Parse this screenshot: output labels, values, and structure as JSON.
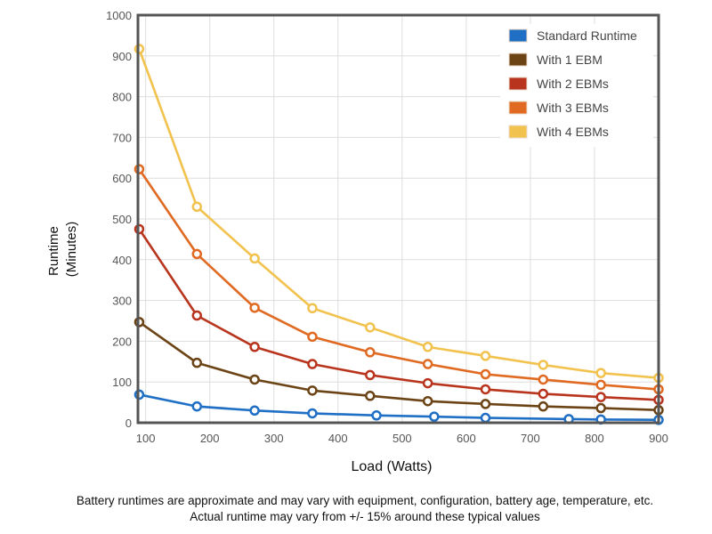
{
  "chart_data": {
    "type": "line",
    "xlabel": "Load (Watts)",
    "ylabel_lines": [
      "Runtime",
      "(Minutes)"
    ],
    "xlim": [
      88,
      900
    ],
    "ylim": [
      0,
      1000
    ],
    "xticks": [
      100,
      200,
      300,
      400,
      500,
      600,
      700,
      800,
      900
    ],
    "yticks": [
      0,
      100,
      200,
      300,
      400,
      500,
      600,
      700,
      800,
      900,
      1000
    ],
    "grid": true,
    "legend_position": "top-right",
    "series": [
      {
        "name": "Standard Runtime",
        "color": "#1f6fc5",
        "x": [
          90,
          180,
          270,
          360,
          460,
          550,
          630,
          760,
          810,
          900
        ],
        "y": [
          69,
          40,
          30,
          23,
          18,
          15,
          12,
          9,
          8,
          7
        ]
      },
      {
        "name": "With 1 EBM",
        "color": "#6b4315",
        "x": [
          90,
          180,
          270,
          360,
          450,
          540,
          630,
          720,
          810,
          900
        ],
        "y": [
          247,
          147,
          106,
          79,
          66,
          53,
          46,
          40,
          36,
          31
        ]
      },
      {
        "name": "With 2 EBMs",
        "color": "#b9341c",
        "x": [
          90,
          180,
          270,
          360,
          450,
          540,
          630,
          720,
          810,
          900
        ],
        "y": [
          475,
          263,
          186,
          144,
          117,
          97,
          82,
          71,
          63,
          56
        ]
      },
      {
        "name": "With 3 EBMs",
        "color": "#e06a22",
        "x": [
          90,
          180,
          270,
          360,
          450,
          540,
          630,
          720,
          810,
          900
        ],
        "y": [
          622,
          414,
          282,
          211,
          173,
          144,
          119,
          106,
          93,
          82
        ]
      },
      {
        "name": "With 4 EBMs",
        "color": "#f2c24e",
        "x": [
          90,
          180,
          270,
          360,
          450,
          540,
          630,
          720,
          810,
          900
        ],
        "y": [
          917,
          530,
          403,
          281,
          234,
          186,
          164,
          142,
          122,
          110
        ]
      }
    ]
  },
  "notes": [
    "Battery runtimes are approximate and may vary with equipment, configuration, battery age, temperature, etc.",
    "Actual runtime may vary from +/- 15% around these typical values"
  ]
}
